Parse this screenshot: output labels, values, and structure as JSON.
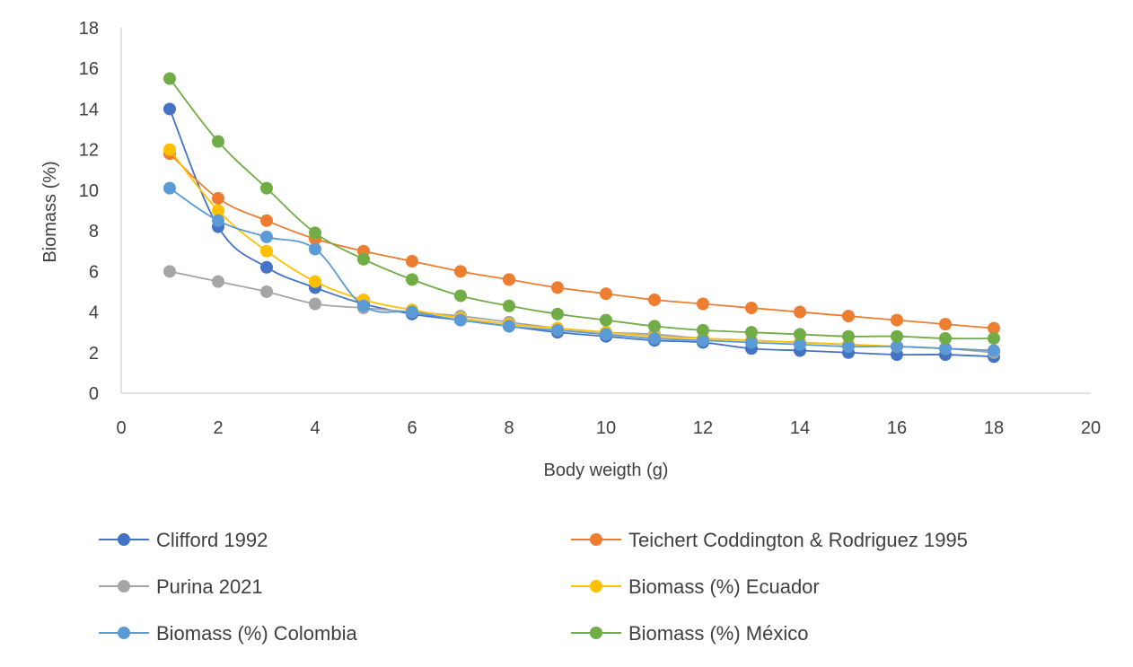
{
  "chart_data": {
    "type": "line",
    "title": "",
    "xlabel": "Body weigth (g)",
    "ylabel": "Biomass (%)",
    "xlim": [
      0,
      20
    ],
    "ylim": [
      0,
      18
    ],
    "xticks": [
      0,
      2,
      4,
      6,
      8,
      10,
      12,
      14,
      16,
      18,
      20
    ],
    "yticks": [
      0,
      2,
      4,
      6,
      8,
      10,
      12,
      14,
      16,
      18
    ],
    "grid": false,
    "legend_position": "bottom",
    "series": [
      {
        "name": "Clifford 1992",
        "color": "#4472c4",
        "x": [
          1,
          2,
          3,
          4,
          5,
          6,
          7,
          8,
          9,
          10,
          11,
          12,
          13,
          14,
          15,
          16,
          17,
          18
        ],
        "y": [
          14.0,
          8.2,
          6.2,
          5.2,
          4.4,
          3.9,
          3.6,
          3.3,
          3.0,
          2.8,
          2.6,
          2.5,
          2.2,
          2.1,
          2.0,
          1.9,
          1.9,
          1.8
        ]
      },
      {
        "name": "Teichert Coddington & Rodriguez 1995",
        "color": "#ed7d31",
        "x": [
          1,
          2,
          3,
          4,
          5,
          6,
          7,
          8,
          9,
          10,
          11,
          12,
          13,
          14,
          15,
          16,
          17,
          18
        ],
        "y": [
          11.8,
          9.6,
          8.5,
          7.6,
          7.0,
          6.5,
          6.0,
          5.6,
          5.2,
          4.9,
          4.6,
          4.4,
          4.2,
          4.0,
          3.8,
          3.6,
          3.4,
          3.2
        ]
      },
      {
        "name": "Purina 2021",
        "color": "#a5a5a5",
        "x": [
          1,
          2,
          3,
          4,
          5,
          6,
          7,
          8,
          9,
          10,
          11,
          12,
          13,
          14,
          15,
          16,
          17,
          18
        ],
        "y": [
          6.0,
          5.5,
          5.0,
          4.4,
          4.2,
          4.0,
          3.8,
          3.5,
          3.2,
          3.0,
          2.9,
          2.7,
          2.6,
          2.5,
          2.4,
          2.3,
          2.2,
          2.0
        ]
      },
      {
        "name": "Biomass (%) Ecuador",
        "color": "#ffc000",
        "x": [
          1,
          2,
          3,
          4,
          5,
          6,
          7,
          8,
          9,
          10,
          11,
          12,
          13,
          14,
          15,
          16,
          17,
          18
        ],
        "y": [
          12.0,
          9.0,
          7.0,
          5.5,
          4.6,
          4.1,
          3.7,
          3.4,
          3.2,
          3.0,
          2.8,
          2.7,
          2.6,
          2.5,
          2.4,
          2.3,
          2.2,
          2.1
        ]
      },
      {
        "name": "Biomass (%) Colombia",
        "color": "#5b9bd5",
        "x": [
          1,
          2,
          3,
          4,
          5,
          6,
          7,
          8,
          9,
          10,
          11,
          12,
          13,
          14,
          15,
          16,
          17,
          18
        ],
        "y": [
          10.1,
          8.5,
          7.7,
          7.1,
          4.3,
          4.0,
          3.6,
          3.3,
          3.1,
          2.9,
          2.7,
          2.6,
          2.5,
          2.4,
          2.3,
          2.3,
          2.2,
          2.1
        ]
      },
      {
        "name": "Biomass (%) México",
        "color": "#70ad47",
        "x": [
          1,
          2,
          3,
          4,
          5,
          6,
          7,
          8,
          9,
          10,
          11,
          12,
          13,
          14,
          15,
          16,
          17,
          18
        ],
        "y": [
          15.5,
          12.4,
          10.1,
          7.9,
          6.6,
          5.6,
          4.8,
          4.3,
          3.9,
          3.6,
          3.3,
          3.1,
          3.0,
          2.9,
          2.8,
          2.8,
          2.7,
          2.7
        ]
      }
    ]
  }
}
